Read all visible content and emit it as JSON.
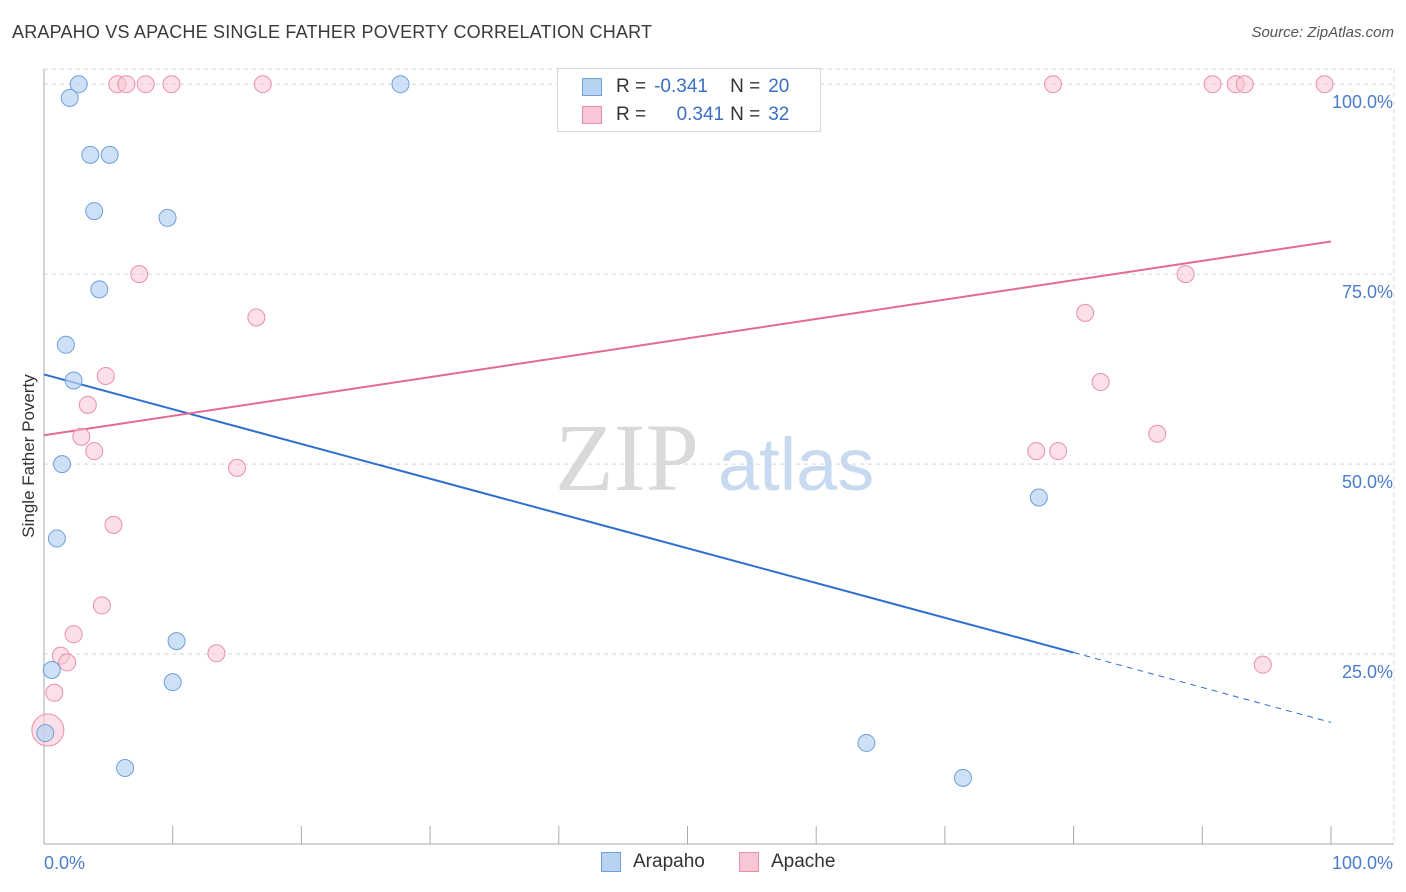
{
  "header": {
    "title": "ARAPAHO VS APACHE SINGLE FATHER POVERTY CORRELATION CHART",
    "source": "Source: ZipAtlas.com"
  },
  "watermark": {
    "zip": "ZIP",
    "atlas": "atlas"
  },
  "legend": {
    "rows": [
      {
        "r_label": "R =",
        "r_value": "-0.341",
        "n_label": "N =",
        "n_value": "20"
      },
      {
        "r_label": "R =",
        "r_value": "0.341",
        "n_label": "N =",
        "n_value": "32"
      }
    ]
  },
  "bottom_legend": {
    "series1": "Arapaho",
    "series2": "Apache"
  },
  "colors": {
    "arapaho_fill": "#b8d3f2",
    "arapaho_stroke": "#6f9fdc",
    "arapaho_line": "#2f6fcf",
    "apache_fill": "#f8c6d4",
    "apache_stroke": "#ea8eaa",
    "apache_line": "#e36a93",
    "axis_text": "#4a7cc9",
    "grid": "#d5d5d5"
  },
  "chart_data": {
    "type": "scatter",
    "title": "ARAPAHO VS APACHE SINGLE FATHER POVERTY CORRELATION CHART",
    "xlabel": "",
    "ylabel": "Single Father Poverty",
    "xlim": [
      0,
      100
    ],
    "ylim": [
      0,
      102
    ],
    "x_tick_labels": [
      {
        "value": 0,
        "label": "0.0%"
      },
      {
        "value": 100,
        "label": "100.0%"
      }
    ],
    "y_tick_labels": [
      {
        "value": 25,
        "label": "25.0%"
      },
      {
        "value": 50,
        "label": "50.0%"
      },
      {
        "value": 75,
        "label": "75.0%"
      },
      {
        "value": 100,
        "label": "100.0%"
      }
    ],
    "series": [
      {
        "name": "Arapaho",
        "r": -0.341,
        "n": 20,
        "points": [
          [
            2.7,
            100
          ],
          [
            2.0,
            98.2
          ],
          [
            27.7,
            100
          ],
          [
            3.6,
            90.7
          ],
          [
            5.1,
            90.7
          ],
          [
            3.9,
            83.3
          ],
          [
            9.6,
            82.4
          ],
          [
            4.3,
            73.0
          ],
          [
            1.7,
            65.7
          ],
          [
            2.3,
            61.0
          ],
          [
            1.4,
            50.0
          ],
          [
            1.0,
            40.2
          ],
          [
            10.3,
            26.7
          ],
          [
            0.6,
            22.9
          ],
          [
            10.0,
            21.3
          ],
          [
            0.1,
            14.6
          ],
          [
            6.3,
            10.0
          ],
          [
            63.9,
            13.3
          ],
          [
            71.4,
            8.7
          ],
          [
            77.3,
            45.6
          ]
        ],
        "trend": {
          "x1": 0,
          "y1": 61.8,
          "x2": 80,
          "y2": 25.2,
          "dash_to_x": 100,
          "dash_to_y": 16.0
        }
      },
      {
        "name": "Apache",
        "r": 0.341,
        "n": 32,
        "points": [
          [
            5.7,
            100
          ],
          [
            6.4,
            100
          ],
          [
            7.9,
            100
          ],
          [
            9.9,
            100
          ],
          [
            17.0,
            100
          ],
          [
            78.4,
            100
          ],
          [
            90.8,
            100
          ],
          [
            92.6,
            100
          ],
          [
            93.3,
            100
          ],
          [
            99.5,
            100
          ],
          [
            7.4,
            75.0
          ],
          [
            16.5,
            69.3
          ],
          [
            4.8,
            61.6
          ],
          [
            3.4,
            57.8
          ],
          [
            2.9,
            53.6
          ],
          [
            3.9,
            51.7
          ],
          [
            15.0,
            49.5
          ],
          [
            5.4,
            42.0
          ],
          [
            4.5,
            31.4
          ],
          [
            2.3,
            27.6
          ],
          [
            1.3,
            24.8
          ],
          [
            1.8,
            23.9
          ],
          [
            13.4,
            25.1
          ],
          [
            0.8,
            19.9
          ],
          [
            0.3,
            15.0
          ],
          [
            88.7,
            75.0
          ],
          [
            80.9,
            69.9
          ],
          [
            82.1,
            60.8
          ],
          [
            86.5,
            54.0
          ],
          [
            77.1,
            51.7
          ],
          [
            78.8,
            51.7
          ],
          [
            94.7,
            23.6
          ]
        ],
        "trend": {
          "x1": 0,
          "y1": 53.8,
          "x2": 100,
          "y2": 79.3
        }
      }
    ]
  }
}
